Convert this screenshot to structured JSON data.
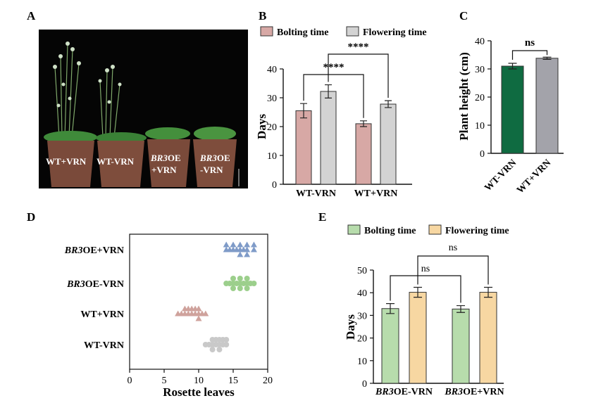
{
  "panels": {
    "A": {
      "label": "A",
      "pot_labels": [
        {
          "line1": "WT+VRN",
          "line2": ""
        },
        {
          "line1": "WT-VRN",
          "line2": ""
        },
        {
          "line1": "BR3OE",
          "line2": "+VRN"
        },
        {
          "line1": "BR3OE",
          "line2": "-VRN"
        }
      ]
    },
    "B": {
      "label": "B",
      "legend": [
        "Bolting time",
        "Flowering time"
      ],
      "ylabel": "Days",
      "sig1": "****",
      "sig2": "****"
    },
    "C": {
      "label": "C",
      "ylabel": "Plant height (cm)",
      "sig": "ns"
    },
    "D": {
      "label": "D",
      "xlabel": "Rosette leaves"
    },
    "E": {
      "label": "E",
      "legend": [
        "Bolting time",
        "Flowering time"
      ],
      "ylabel": "Days",
      "sig1": "ns",
      "sig2": "ns"
    }
  },
  "colors": {
    "bolting_B": "#d7a8a5",
    "flowering_B": "#d3d3d3",
    "wt_minus_C": "#0f6b41",
    "wt_plus_C": "#a3a3aa",
    "bolting_E": "#b7dcac",
    "flowering_E": "#f7d7a2",
    "d_br3oe_plus": "#7f9bc8",
    "d_br3oe_minus": "#9ccf8c",
    "d_wt_plus": "#cfa29c",
    "d_wt_minus": "#c9c9c9"
  },
  "chart_data": [
    {
      "panel": "B",
      "type": "bar",
      "categories": [
        "WT-VRN",
        "WT+VRN"
      ],
      "series": [
        {
          "name": "Bolting time",
          "values": [
            25.5,
            21.0
          ],
          "errors": [
            2.5,
            1.0
          ]
        },
        {
          "name": "Flowering time",
          "values": [
            32.2,
            27.8
          ],
          "errors": [
            2.3,
            1.2
          ]
        }
      ],
      "ylabel": "Days",
      "ylim": [
        0,
        40
      ],
      "yticks": [
        0,
        10,
        20,
        30,
        40
      ],
      "significance": [
        "****",
        "****"
      ]
    },
    {
      "panel": "C",
      "type": "bar",
      "categories": [
        "WT-VRN",
        "WT+VRN"
      ],
      "values": [
        31.0,
        33.8
      ],
      "errors": [
        1.0,
        0.4
      ],
      "ylabel": "Plant height (cm)",
      "ylim": [
        0,
        40
      ],
      "yticks": [
        0,
        10,
        20,
        30,
        40
      ],
      "significance": "ns"
    },
    {
      "panel": "D",
      "type": "scatter",
      "categories": [
        "BR3OE+VRN",
        "BR3OE-VRN",
        "WT+VRN",
        "WT-VRN"
      ],
      "xlabel": "Rosette leaves",
      "xlim": [
        0,
        20
      ],
      "xticks": [
        0,
        5,
        10,
        15,
        20
      ],
      "series": [
        {
          "name": "BR3OE+VRN",
          "marker": "triangle",
          "values": [
            14,
            14,
            15,
            15,
            16,
            16,
            16,
            17,
            17,
            17,
            18,
            18,
            14.5,
            15.5,
            16.5
          ]
        },
        {
          "name": "BR3OE-VRN",
          "marker": "circle",
          "values": [
            14,
            14.5,
            15,
            15,
            15.5,
            16,
            16,
            16.5,
            17,
            17,
            17.5,
            18,
            15,
            16,
            17
          ]
        },
        {
          "name": "WT+VRN",
          "marker": "triangle",
          "values": [
            7,
            7.5,
            8,
            8,
            8.5,
            9,
            9,
            9.5,
            10,
            10,
            10.5,
            11,
            8.5,
            9.5,
            10
          ]
        },
        {
          "name": "WT-VRN",
          "marker": "circle",
          "values": [
            11,
            11.5,
            12,
            12,
            12.5,
            13,
            13,
            13.5,
            14,
            14,
            12,
            13,
            12.5,
            13.5,
            12
          ]
        }
      ]
    },
    {
      "panel": "E",
      "type": "bar",
      "categories": [
        "BR3OE-VRN",
        "BR3OE+VRN"
      ],
      "series": [
        {
          "name": "Bolting time",
          "values": [
            33.0,
            32.8
          ],
          "errors": [
            2.2,
            1.5
          ]
        },
        {
          "name": "Flowering time",
          "values": [
            40.2,
            40.2
          ],
          "errors": [
            2.2,
            2.2
          ]
        }
      ],
      "ylabel": "Days",
      "ylim": [
        0,
        50
      ],
      "yticks": [
        0,
        10,
        20,
        30,
        40,
        50
      ],
      "significance": [
        "ns",
        "ns"
      ]
    }
  ]
}
